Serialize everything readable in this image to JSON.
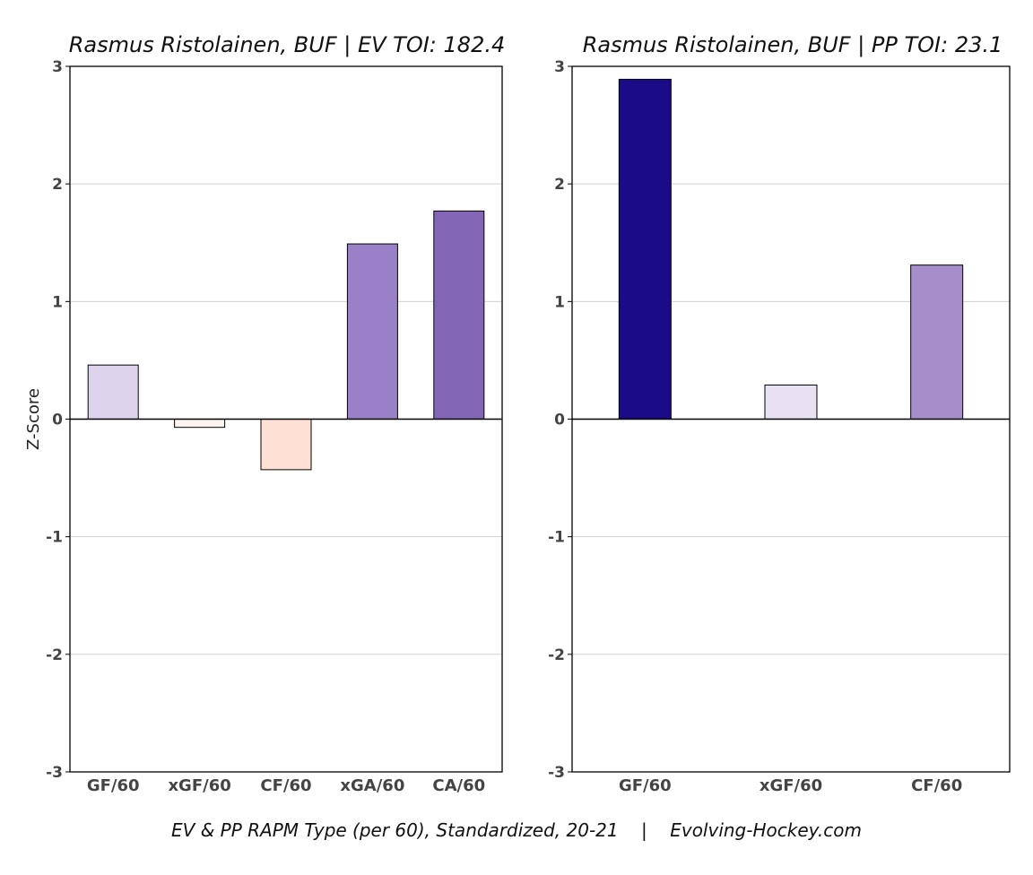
{
  "footer": "EV & PP RAPM Type (per 60), Standardized, 20-21    |    Evolving-Hockey.com",
  "chart_data": [
    {
      "type": "bar",
      "title": "Rasmus Ristolainen, BUF  |  EV TOI: 182.4",
      "ylabel": "Z-Score",
      "ylim": [
        -3,
        3
      ],
      "yticks": [
        3,
        2,
        1,
        0,
        -1,
        -2,
        -3
      ],
      "ytick_labels": [
        "3",
        "2",
        "1",
        "0",
        "-1",
        "-2",
        "-3"
      ],
      "grid": true,
      "categories": [
        "GF/60",
        "xGF/60",
        "CF/60",
        "xGA/60",
        "CA/60"
      ],
      "values": [
        0.46,
        -0.07,
        -0.43,
        1.49,
        1.77
      ],
      "colors": [
        "#ddd3ec",
        "#fdf3ef",
        "#fee0d4",
        "#9a80c6",
        "#8466b7"
      ]
    },
    {
      "type": "bar",
      "title": "Rasmus Ristolainen, BUF  |  PP TOI: 23.1",
      "ylabel": "",
      "ylim": [
        -3,
        3
      ],
      "yticks": [
        3,
        2,
        1,
        0,
        -1,
        -2,
        -3
      ],
      "ytick_labels": [
        "3",
        "2",
        "1",
        "0",
        "-1",
        "-2",
        "-3"
      ],
      "grid": true,
      "categories": [
        "GF/60",
        "xGF/60",
        "CF/60"
      ],
      "values": [
        2.89,
        0.29,
        1.31
      ],
      "colors": [
        "#1c0b89",
        "#e8e1f2",
        "#a58eca"
      ]
    }
  ]
}
